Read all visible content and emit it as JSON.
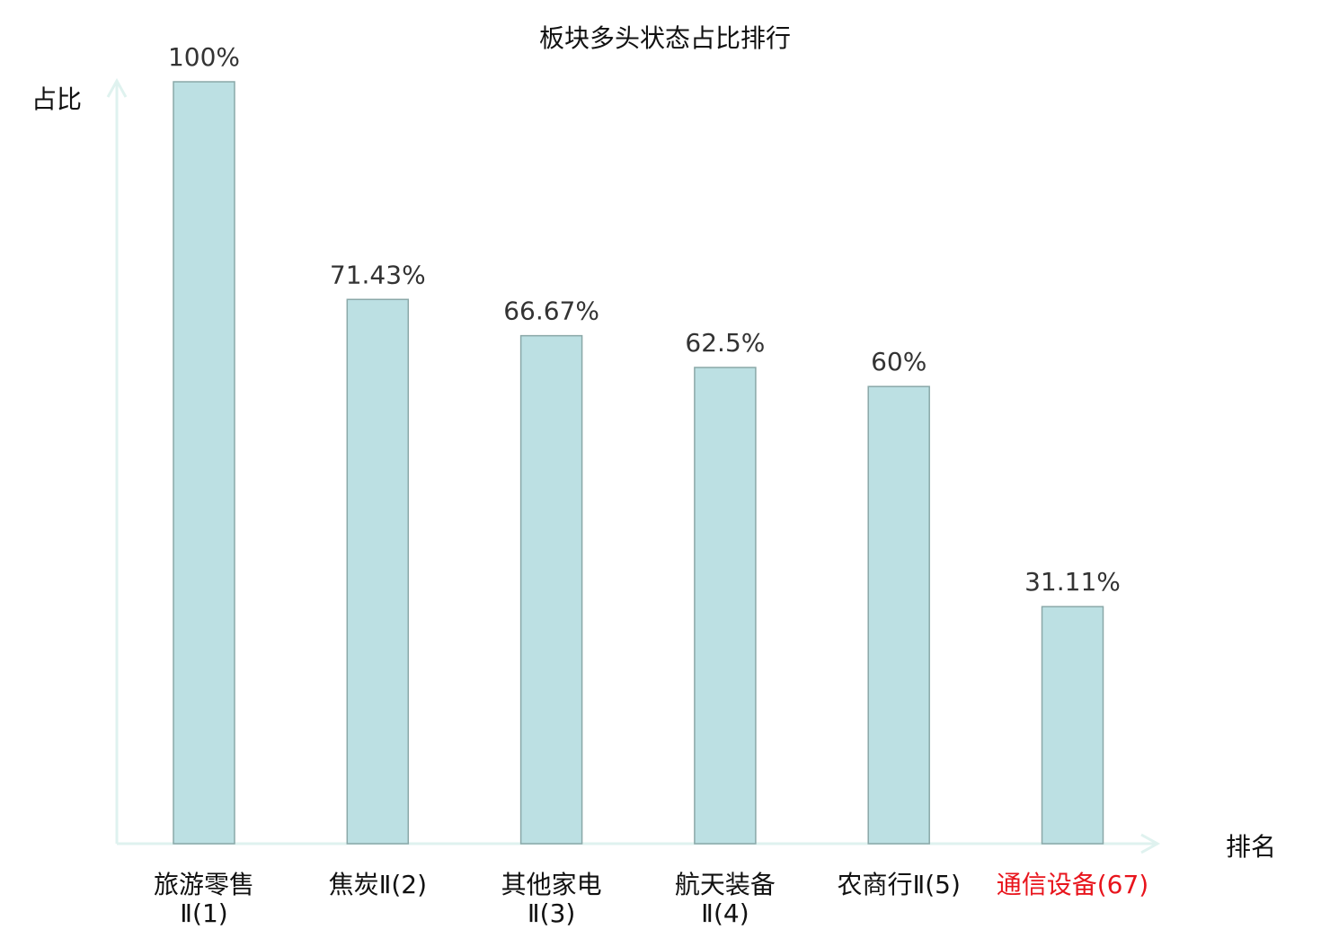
{
  "chart_data": {
    "type": "bar",
    "title": "板块多头状态占比排行",
    "xlabel": "排名",
    "ylabel": "占比",
    "categories": [
      "旅游零售Ⅱ(1)",
      "焦炭Ⅱ(2)",
      "其他家电Ⅱ(3)",
      "航天装备Ⅱ(4)",
      "农商行Ⅱ(5)",
      "通信设备(67)"
    ],
    "values": [
      100,
      71.43,
      66.67,
      62.5,
      60,
      31.11
    ],
    "data_labels": [
      "100%",
      "71.43%",
      "66.67%",
      "62.5%",
      "60%",
      "31.11%"
    ],
    "highlighted_category": "通信设备(67)",
    "ylim": [
      0,
      100
    ],
    "grid": false,
    "colors": {
      "bar_fill": "#bce0e3",
      "bar_stroke": "#8aa8a8",
      "axis": "#dff2ef",
      "highlight_label": "#e8141c",
      "text": "#222222"
    }
  }
}
